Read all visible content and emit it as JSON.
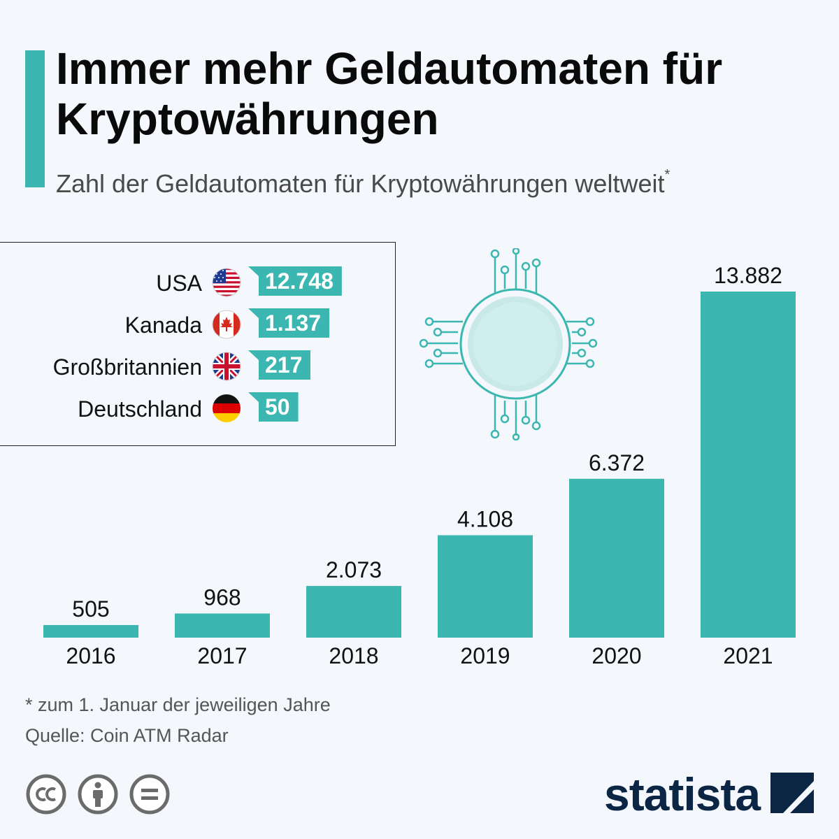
{
  "header": {
    "title": "Immer mehr Geldautomaten für Kryptowährungen",
    "subtitle": "Zahl der Geldautomaten für Kryptowährungen weltweit",
    "subtitle_marker": "*"
  },
  "countries": [
    {
      "name": "USA",
      "value": "12.748",
      "flag_icon": "usa-flag-icon"
    },
    {
      "name": "Kanada",
      "value": "1.137",
      "flag_icon": "canada-flag-icon"
    },
    {
      "name": "Großbritannien",
      "value": "217",
      "flag_icon": "uk-flag-icon"
    },
    {
      "name": "Deutschland",
      "value": "50",
      "flag_icon": "germany-flag-icon"
    }
  ],
  "chart_data": {
    "type": "bar",
    "title": "Immer mehr Geldautomaten für Kryptowährungen",
    "subtitle": "Zahl der Geldautomaten für Kryptowährungen weltweit*",
    "categories": [
      "2016",
      "2017",
      "2018",
      "2019",
      "2020",
      "2021"
    ],
    "values": [
      505,
      968,
      2073,
      4108,
      6372,
      13882
    ],
    "value_labels": [
      "505",
      "968",
      "2.073",
      "4.108",
      "6.372",
      "13.882"
    ],
    "xlabel": "",
    "ylabel": "",
    "ylim": [
      0,
      13882
    ],
    "grid": false,
    "color": "#3bb6b1"
  },
  "footer": {
    "footnote": "* zum 1. Januar der jeweiligen Jahre",
    "source": "Quelle: Coin ATM Radar",
    "brand": "statista"
  },
  "colors": {
    "accent": "#3bb6b1",
    "background": "#f4f7fb",
    "brand": "#0b2545"
  }
}
